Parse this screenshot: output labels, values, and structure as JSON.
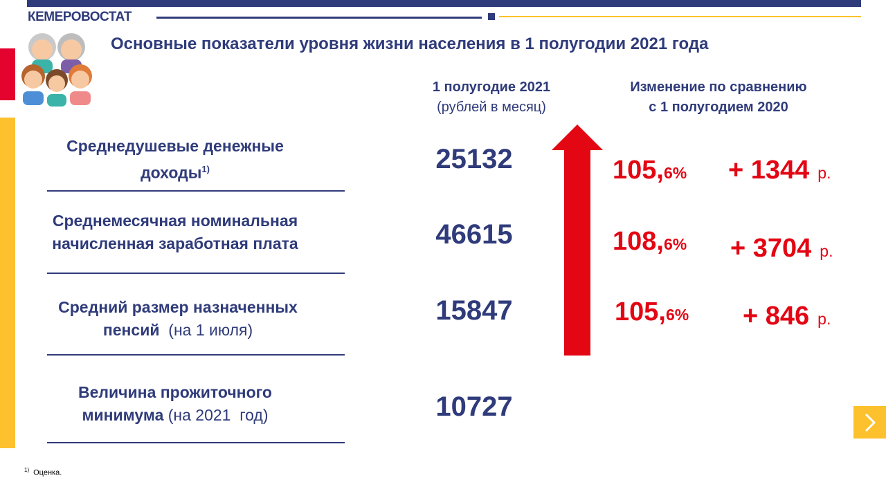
{
  "header": {
    "brand": "КЕМЕРОВОСТАТ",
    "title": "Основные показатели уровня жизни населения в 1 полугодии  2021 года"
  },
  "columns": {
    "value_header_line1": "1 полугодие 2021",
    "value_header_line2": "(рублей в  месяц)",
    "change_header_line1": "Изменение по сравнению",
    "change_header_line2": "с 1 полугодием 2020"
  },
  "rows": [
    {
      "label_line1": "Среднедушевые денежные",
      "label_line2_bold": "доходы",
      "label_sup": "1)",
      "label_line2_normal": "",
      "value": "25132",
      "pct_main": "105,",
      "pct_small": "6%",
      "abs_change": "+ 1344",
      "unit": "р."
    },
    {
      "label_line1": "Среднемесячная номинальная",
      "label_line2_bold": "начисленная заработная плата",
      "label_sup": "",
      "label_line2_normal": "",
      "value": "46615",
      "pct_main": "108,",
      "pct_small": "6%",
      "abs_change": "+ 3704",
      "unit": "р."
    },
    {
      "label_line1": "Средний размер назначенных",
      "label_line2_bold": "пенсий",
      "label_sup": "",
      "label_line2_normal": "  (на 1 июля)",
      "value": "15847",
      "pct_main": "105,",
      "pct_small": "6%",
      "abs_change": "+ 846",
      "unit": "р."
    },
    {
      "label_line1": "Величина  прожиточного",
      "label_line2_bold": "минимума",
      "label_sup": "",
      "label_line2_normal": " (на 2021  год)",
      "value": "10727"
    }
  ],
  "footnote": {
    "marker": "1)",
    "text": "Оценка."
  },
  "icons": {
    "people": "family-people-icon",
    "arrow": "red-up-arrow-icon",
    "next": "chevron-right-icon"
  },
  "colors": {
    "navy": "#2f3b7a",
    "red": "#e30613",
    "yellow": "#fcc12d"
  }
}
